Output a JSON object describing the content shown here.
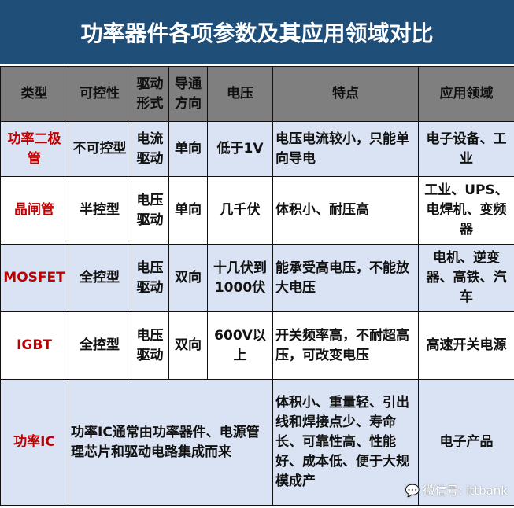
{
  "title": "功率器件各项参数及其应用领域对比",
  "headers": [
    "类型",
    "可控性",
    "驱动形式",
    "导通方向",
    "电压",
    "特点",
    "应用领域"
  ],
  "rows": [
    {
      "type": "功率二极管",
      "control": "不可控型",
      "drive": "电流驱动",
      "direction": "单向",
      "voltage": "低于1V",
      "features": "电压电流较小，只能单向导电",
      "application": "电子设备、工业"
    },
    {
      "type": "晶闸管",
      "control": "半控型",
      "drive": "电压驱动",
      "direction": "单向",
      "voltage": "几千伏",
      "features": "体积小、耐压高",
      "application": "工业、UPS、电焊机、变频器"
    },
    {
      "type": "MOSFET",
      "control": "全控型",
      "drive": "电压驱动",
      "direction": "双向",
      "voltage": "十几伏到1000伏",
      "features": "能承受高电压，不能放大电压",
      "application": "电机、逆变器、高铁、汽车"
    },
    {
      "type": "IGBT",
      "control": "全控型",
      "drive": "电压驱动",
      "direction": "双向",
      "voltage": "600V以上",
      "features": "开关频率高，不耐超高压，可改变电压",
      "application": "高速开关电源"
    }
  ],
  "last_row": {
    "type": "功率IC",
    "description": "功率IC通常由功率器件、电源管理芯片和驱动电路集成而来",
    "features": "体积小、重量轻、引出线和焊接点少、寿命长、可靠性高、性能好、成本低、便于大规模成产",
    "application": "电子产品"
  },
  "watermark": "微信号: ittbank",
  "colors": {
    "title_bg": "#1f4e79",
    "header_bg": "#7f7f7f",
    "alt_row_bg": "#dae3f3",
    "type_text": "#c00000"
  }
}
